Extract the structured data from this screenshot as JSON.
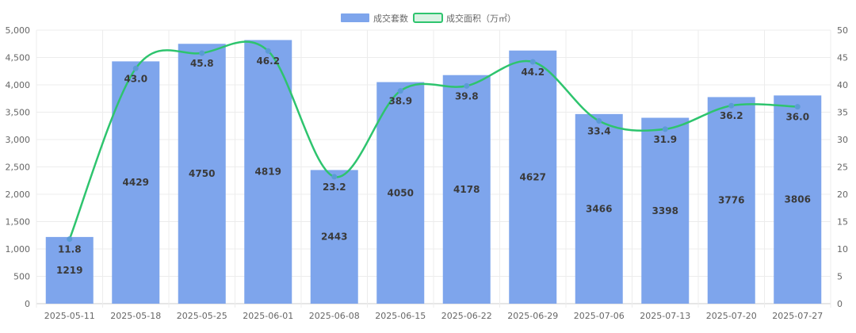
{
  "chart_data": {
    "type": "bar",
    "categories": [
      "2025-05-11",
      "2025-05-18",
      "2025-05-25",
      "2025-06-01",
      "2025-06-08",
      "2025-06-15",
      "2025-06-22",
      "2025-06-29",
      "2025-07-06",
      "2025-07-13",
      "2025-07-20",
      "2025-07-27"
    ],
    "series": [
      {
        "name": "成交套数",
        "type": "bar",
        "axis": "left",
        "color": "#7ea5ec",
        "values": [
          1219,
          4429,
          4750,
          4819,
          2443,
          4050,
          4178,
          4627,
          3466,
          3398,
          3776,
          3806
        ]
      },
      {
        "name": "成交面积（万㎡）",
        "type": "line",
        "axis": "right",
        "color": "#2ec46e",
        "point_color": "#5b9bd5",
        "smooth": true,
        "values": [
          11.8,
          43.0,
          45.8,
          46.2,
          23.2,
          38.9,
          39.8,
          44.2,
          33.4,
          31.9,
          36.2,
          36.0
        ]
      }
    ],
    "y_left": {
      "min": 0,
      "max": 5000,
      "ticks": [
        "0",
        "500",
        "1,000",
        "1,500",
        "2,000",
        "2,500",
        "3,000",
        "3,500",
        "4,000",
        "4,500",
        "5,000"
      ]
    },
    "y_right": {
      "min": 0,
      "max": 50,
      "ticks": [
        "0",
        "5",
        "10",
        "15",
        "20",
        "25",
        "30",
        "35",
        "40",
        "45",
        "50"
      ]
    },
    "legend": {
      "position": "top-center"
    },
    "grid": true
  }
}
